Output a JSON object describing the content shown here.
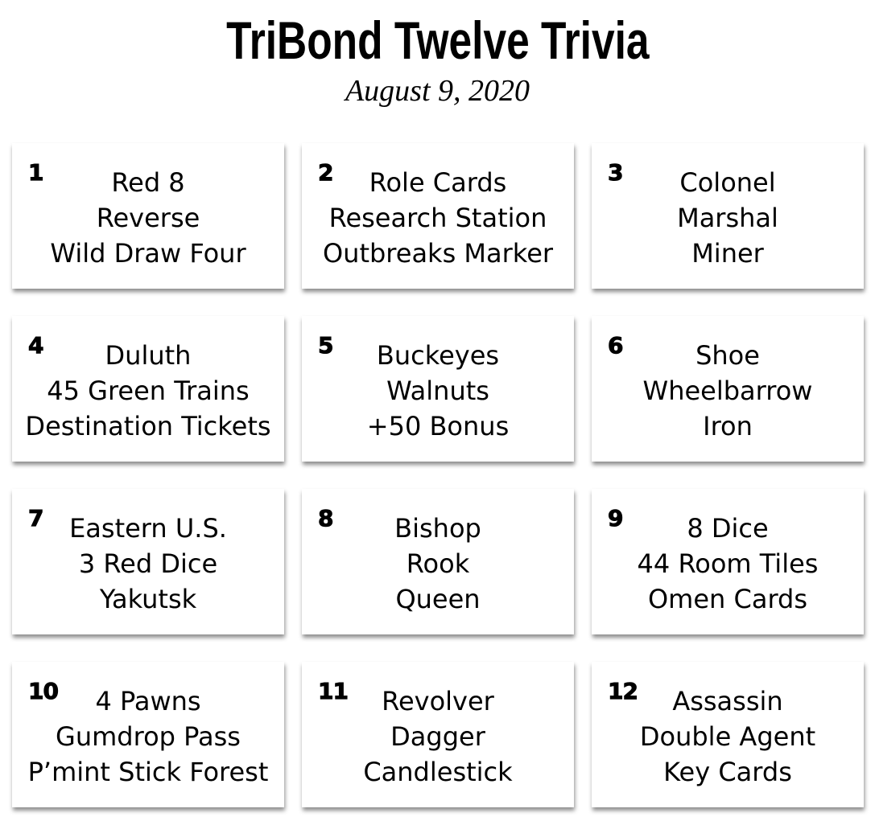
{
  "header": {
    "title": "TriBond Twelve Trivia",
    "date": "August 9, 2020"
  },
  "cards": [
    {
      "number": "1",
      "clues": [
        "Red 8",
        "Reverse",
        "Wild Draw Four"
      ]
    },
    {
      "number": "2",
      "clues": [
        "Role Cards",
        "Research Station",
        "Outbreaks Marker"
      ]
    },
    {
      "number": "3",
      "clues": [
        "Colonel",
        "Marshal",
        "Miner"
      ]
    },
    {
      "number": "4",
      "clues": [
        "Duluth",
        "45 Green Trains",
        "Destination Tickets"
      ]
    },
    {
      "number": "5",
      "clues": [
        "Buckeyes",
        "Walnuts",
        "+50 Bonus"
      ]
    },
    {
      "number": "6",
      "clues": [
        "Shoe",
        "Wheelbarrow",
        "Iron"
      ]
    },
    {
      "number": "7",
      "clues": [
        "Eastern U.S.",
        "3 Red Dice",
        "Yakutsk"
      ]
    },
    {
      "number": "8",
      "clues": [
        "Bishop",
        "Rook",
        "Queen"
      ]
    },
    {
      "number": "9",
      "clues": [
        "8 Dice",
        "44 Room Tiles",
        "Omen Cards"
      ]
    },
    {
      "number": "10",
      "clues": [
        "4 Pawns",
        "Gumdrop Pass",
        "P’mint Stick Forest"
      ]
    },
    {
      "number": "11",
      "clues": [
        "Revolver",
        "Dagger",
        "Candlestick"
      ]
    },
    {
      "number": "12",
      "clues": [
        "Assassin",
        "Double Agent",
        "Key Cards"
      ]
    }
  ]
}
